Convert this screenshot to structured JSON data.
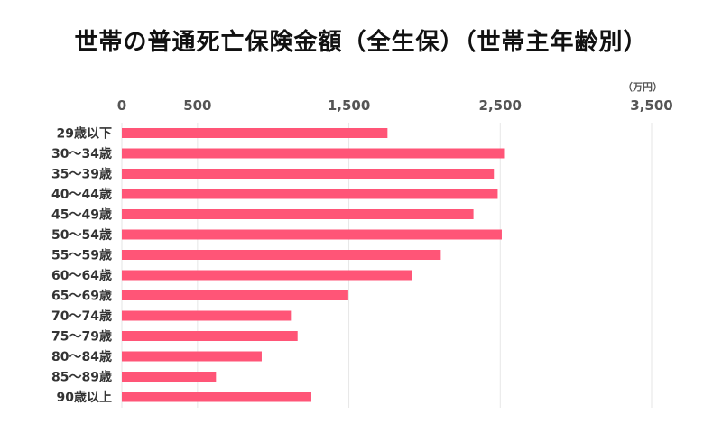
{
  "chart_data": {
    "type": "bar",
    "orientation": "horizontal",
    "title": "世帯の普通死亡保険金額（全生保）（世帯主年齢別）",
    "unit": "（万円）",
    "categories": [
      "29歳以下",
      "30～34歳",
      "35～39歳",
      "40～44歳",
      "45～49歳",
      "50～54歳",
      "55～59歳",
      "60～64歳",
      "65～69歳",
      "70～74歳",
      "75～79歳",
      "80～84歳",
      "85～89歳",
      "90歳以上"
    ],
    "values": [
      1755,
      2531,
      2458,
      2483,
      2323,
      2510,
      2107,
      1916,
      1496,
      1117,
      1161,
      924,
      622,
      1252
    ],
    "xlim": [
      0,
      3500
    ],
    "ticks": [
      0,
      500,
      1500,
      2500,
      3500
    ],
    "tick_labels": [
      "0",
      "500",
      "1,500",
      "2,500",
      "3,500"
    ],
    "grid": true,
    "colors": {
      "bar": "#ff5577",
      "grid": "#e6e6e6"
    }
  }
}
